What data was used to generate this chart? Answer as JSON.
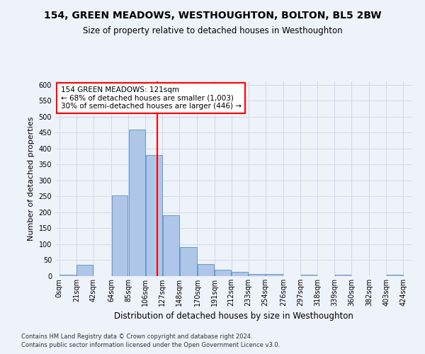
{
  "title": "154, GREEN MEADOWS, WESTHOUGHTON, BOLTON, BL5 2BW",
  "subtitle": "Size of property relative to detached houses in Westhoughton",
  "xlabel": "Distribution of detached houses by size in Westhoughton",
  "ylabel": "Number of detached properties",
  "footnote1": "Contains HM Land Registry data © Crown copyright and database right 2024.",
  "footnote2": "Contains public sector information licensed under the Open Government Licence v3.0.",
  "annotation_line1": "154 GREEN MEADOWS: 121sqm",
  "annotation_line2": "← 68% of detached houses are smaller (1,003)",
  "annotation_line3": "30% of semi-detached houses are larger (446) →",
  "property_size": 121,
  "bin_edges": [
    0,
    21,
    42,
    64,
    85,
    106,
    127,
    148,
    170,
    191,
    212,
    233,
    254,
    276,
    297,
    318,
    339,
    360,
    382,
    403,
    424
  ],
  "bin_counts": [
    5,
    35,
    0,
    252,
    460,
    380,
    190,
    92,
    38,
    20,
    13,
    7,
    7,
    0,
    5,
    0,
    5,
    0,
    0,
    5
  ],
  "bar_color": "#aec6e8",
  "bar_edge_color": "#5a8fc2",
  "vline_color": "red",
  "vline_x": 121,
  "grid_color": "#d0d8e8",
  "background_color": "#eef2f9",
  "ylim": [
    0,
    610
  ],
  "yticks": [
    0,
    50,
    100,
    150,
    200,
    250,
    300,
    350,
    400,
    450,
    500,
    550,
    600
  ],
  "title_fontsize": 10,
  "subtitle_fontsize": 8.5,
  "xlabel_fontsize": 8.5,
  "ylabel_fontsize": 8,
  "tick_fontsize": 7,
  "footnote_fontsize": 6,
  "annotation_fontsize": 7.5
}
